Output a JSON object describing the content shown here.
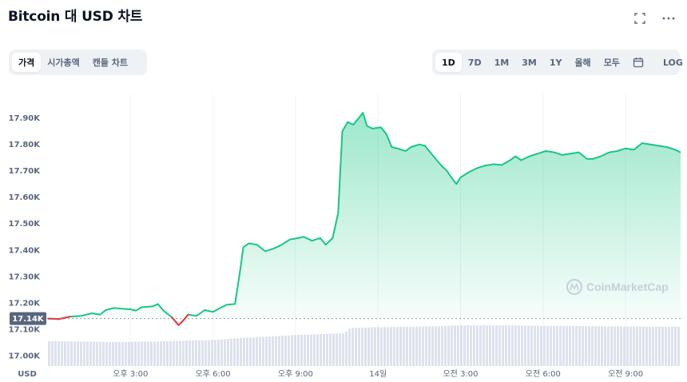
{
  "header": {
    "title": "Bitcoin 대 USD 차트",
    "fullscreen_icon": "expand-icon",
    "more_icon": "more-icon"
  },
  "view_tabs": [
    {
      "label": "가격",
      "active": true
    },
    {
      "label": "시가총액",
      "active": false
    },
    {
      "label": "캔들 차트",
      "active": false
    }
  ],
  "range_tabs": [
    {
      "label": "1D",
      "active": true
    },
    {
      "label": "7D",
      "active": false
    },
    {
      "label": "1M",
      "active": false
    },
    {
      "label": "3M",
      "active": false
    },
    {
      "label": "1Y",
      "active": false
    },
    {
      "label": "올해",
      "active": false
    },
    {
      "label": "모두",
      "active": false
    }
  ],
  "calendar_icon": "calendar-icon",
  "log_label": "LOG",
  "watermark": "CoinMarketCap",
  "colors": {
    "up_line": "#16c784",
    "down_line": "#ea3943",
    "area_top": "#16c784",
    "volume": "#cfd6e4",
    "current_badge": "#58667e"
  },
  "chart_data": {
    "type": "area",
    "currency_label": "USD",
    "current_price_label": "17.14K",
    "baseline": 17140,
    "yticks": [
      {
        "value": 17000,
        "label": "17.00K"
      },
      {
        "value": 17100,
        "label": "17.10K"
      },
      {
        "value": 17200,
        "label": "17.20K"
      },
      {
        "value": 17300,
        "label": "17.30K"
      },
      {
        "value": 17400,
        "label": "17.40K"
      },
      {
        "value": 17500,
        "label": "17.50K"
      },
      {
        "value": 17600,
        "label": "17.60K"
      },
      {
        "value": 17700,
        "label": "17.70K"
      },
      {
        "value": 17800,
        "label": "17.80K"
      },
      {
        "value": 17900,
        "label": "17.90K"
      }
    ],
    "ylim": [
      16960,
      17990
    ],
    "xlim": [
      0.0,
      23.0
    ],
    "xticks": [
      {
        "value": 3.0,
        "label": "오후 3:00"
      },
      {
        "value": 6.0,
        "label": "오후 6:00"
      },
      {
        "value": 9.0,
        "label": "오후 9:00"
      },
      {
        "value": 12.0,
        "label": "14일"
      },
      {
        "value": 15.0,
        "label": "오전 3:00"
      },
      {
        "value": 18.0,
        "label": "오전 6:00"
      },
      {
        "value": 21.0,
        "label": "오전 9:00"
      }
    ],
    "price": [
      [
        0.0,
        17140
      ],
      [
        0.4,
        17138
      ],
      [
        0.8,
        17147
      ],
      [
        1.2,
        17150
      ],
      [
        1.6,
        17160
      ],
      [
        1.9,
        17155
      ],
      [
        2.1,
        17172
      ],
      [
        2.4,
        17180
      ],
      [
        2.7,
        17177
      ],
      [
        3.0,
        17175
      ],
      [
        3.2,
        17170
      ],
      [
        3.4,
        17183
      ],
      [
        3.8,
        17186
      ],
      [
        4.0,
        17195
      ],
      [
        4.2,
        17170
      ],
      [
        4.5,
        17145
      ],
      [
        4.75,
        17115
      ],
      [
        4.9,
        17130
      ],
      [
        5.1,
        17155
      ],
      [
        5.4,
        17150
      ],
      [
        5.7,
        17172
      ],
      [
        6.0,
        17165
      ],
      [
        6.3,
        17182
      ],
      [
        6.5,
        17192
      ],
      [
        6.8,
        17195
      ],
      [
        7.0,
        17330
      ],
      [
        7.1,
        17410
      ],
      [
        7.3,
        17425
      ],
      [
        7.6,
        17420
      ],
      [
        7.9,
        17395
      ],
      [
        8.2,
        17405
      ],
      [
        8.5,
        17420
      ],
      [
        8.8,
        17440
      ],
      [
        9.1,
        17445
      ],
      [
        9.3,
        17450
      ],
      [
        9.6,
        17435
      ],
      [
        9.9,
        17445
      ],
      [
        10.1,
        17420
      ],
      [
        10.35,
        17445
      ],
      [
        10.55,
        17540
      ],
      [
        10.7,
        17850
      ],
      [
        10.9,
        17885
      ],
      [
        11.1,
        17875
      ],
      [
        11.3,
        17900
      ],
      [
        11.45,
        17920
      ],
      [
        11.6,
        17870
      ],
      [
        11.8,
        17860
      ],
      [
        12.1,
        17865
      ],
      [
        12.3,
        17840
      ],
      [
        12.5,
        17790
      ],
      [
        12.7,
        17785
      ],
      [
        13.0,
        17775
      ],
      [
        13.2,
        17790
      ],
      [
        13.5,
        17800
      ],
      [
        13.7,
        17795
      ],
      [
        13.9,
        17770
      ],
      [
        14.1,
        17745
      ],
      [
        14.3,
        17720
      ],
      [
        14.5,
        17700
      ],
      [
        14.7,
        17670
      ],
      [
        14.85,
        17650
      ],
      [
        15.0,
        17675
      ],
      [
        15.3,
        17695
      ],
      [
        15.6,
        17710
      ],
      [
        15.9,
        17720
      ],
      [
        16.2,
        17725
      ],
      [
        16.5,
        17722
      ],
      [
        16.8,
        17740
      ],
      [
        17.0,
        17755
      ],
      [
        17.2,
        17740
      ],
      [
        17.5,
        17755
      ],
      [
        17.8,
        17765
      ],
      [
        18.1,
        17775
      ],
      [
        18.4,
        17770
      ],
      [
        18.7,
        17760
      ],
      [
        19.0,
        17765
      ],
      [
        19.3,
        17770
      ],
      [
        19.6,
        17745
      ],
      [
        19.8,
        17745
      ],
      [
        20.1,
        17755
      ],
      [
        20.4,
        17770
      ],
      [
        20.7,
        17775
      ],
      [
        21.0,
        17785
      ],
      [
        21.3,
        17780
      ],
      [
        21.6,
        17805
      ],
      [
        21.9,
        17800
      ],
      [
        22.2,
        17795
      ],
      [
        22.5,
        17790
      ],
      [
        22.8,
        17780
      ],
      [
        23.0,
        17770
      ]
    ],
    "volume": [
      [
        0.0,
        0.58
      ],
      [
        1.0,
        0.57
      ],
      [
        2.0,
        0.56
      ],
      [
        3.0,
        0.56
      ],
      [
        4.0,
        0.57
      ],
      [
        5.0,
        0.59
      ],
      [
        6.0,
        0.6
      ],
      [
        7.0,
        0.65
      ],
      [
        8.0,
        0.68
      ],
      [
        9.0,
        0.72
      ],
      [
        10.0,
        0.74
      ],
      [
        10.8,
        0.76
      ],
      [
        11.0,
        0.88
      ],
      [
        12.0,
        0.9
      ],
      [
        13.0,
        0.91
      ],
      [
        14.0,
        0.92
      ],
      [
        15.0,
        0.94
      ],
      [
        16.0,
        0.94
      ],
      [
        17.0,
        0.94
      ],
      [
        18.0,
        0.93
      ],
      [
        19.0,
        0.93
      ],
      [
        20.0,
        0.92
      ],
      [
        21.0,
        0.92
      ],
      [
        22.0,
        0.91
      ],
      [
        23.0,
        0.91
      ]
    ]
  }
}
